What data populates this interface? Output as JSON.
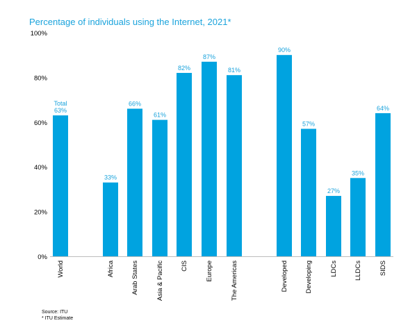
{
  "title": "Percentage of individuals using the Internet, 2021*",
  "notes": [
    "Source: ITU",
    "* ITU Estimate"
  ],
  "colors": {
    "bar": "#00a3e0",
    "label": "#1aa3dc",
    "axis": "#000000"
  },
  "chart_data": {
    "type": "bar",
    "title": "Percentage of individuals using the Internet, 2021*",
    "xlabel": "",
    "ylabel": "",
    "ylim": [
      0,
      100
    ],
    "yticks": [
      "0%",
      "20%",
      "40%",
      "60%",
      "80%",
      "100%"
    ],
    "tick_values": [
      0,
      20,
      40,
      60,
      80,
      100
    ],
    "grid": false,
    "categories": [
      "World",
      "Africa",
      "Arab States",
      "Asia & Pacific",
      "CIS",
      "Europe",
      "The Americas",
      "Developed",
      "Developing",
      "LDCs",
      "LLDCs",
      "SIDS"
    ],
    "values": [
      63,
      33,
      66,
      61,
      82,
      87,
      81,
      90,
      57,
      27,
      35,
      64
    ],
    "data_labels": [
      "63%",
      "33%",
      "66%",
      "61%",
      "82%",
      "87%",
      "81%",
      "90%",
      "57%",
      "27%",
      "35%",
      "64%"
    ],
    "annotations": [
      {
        "category": "World",
        "text": "Total"
      }
    ]
  }
}
